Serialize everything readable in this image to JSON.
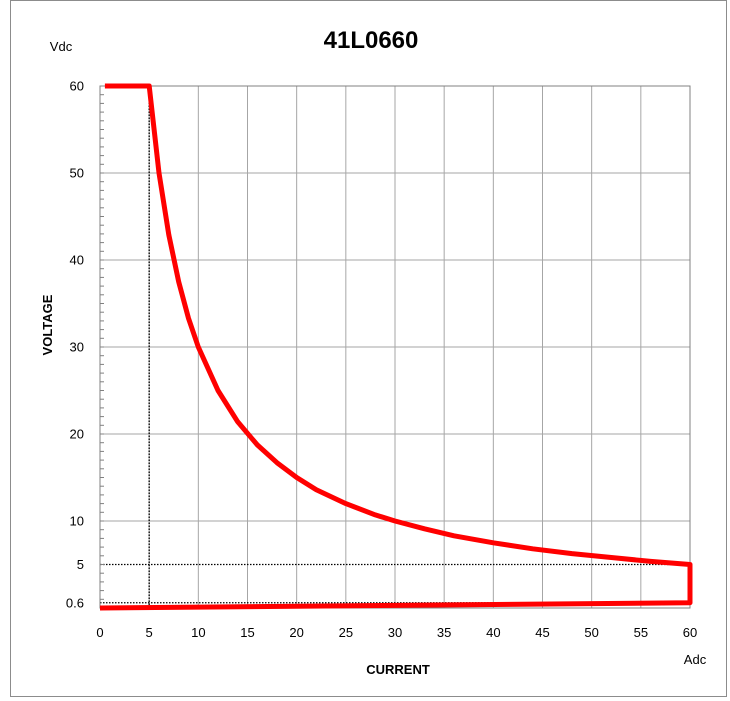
{
  "chart_data": {
    "type": "line",
    "title": "41L0660",
    "xlabel": "CURRENT",
    "ylabel": "VOLTAGE",
    "x_unit": "Adc",
    "y_unit": "Vdc",
    "xlim": [
      0,
      60
    ],
    "ylim": [
      0,
      60
    ],
    "x_ticks": [
      "0",
      "5",
      "10",
      "15",
      "20",
      "25",
      "30",
      "35",
      "40",
      "45",
      "50",
      "55",
      "60"
    ],
    "y_ticks": [
      {
        "value": 0.6,
        "label": "0.6"
      },
      {
        "value": 5,
        "label": "5"
      },
      {
        "value": 10,
        "label": "10"
      },
      {
        "value": 20,
        "label": "20"
      },
      {
        "value": 30,
        "label": "30"
      },
      {
        "value": 40,
        "label": "40"
      },
      {
        "value": 50,
        "label": "50"
      },
      {
        "value": 60,
        "label": "60"
      }
    ],
    "grid": true,
    "line_color": "#ff0000",
    "series": [
      {
        "values": [
          [
            0.5,
            60
          ],
          [
            5,
            60
          ],
          [
            6,
            50
          ],
          [
            7,
            42.9
          ],
          [
            8,
            37.5
          ],
          [
            9,
            33.3
          ],
          [
            10,
            30
          ],
          [
            12,
            25
          ],
          [
            14,
            21.4
          ],
          [
            16,
            18.75
          ],
          [
            18,
            16.7
          ],
          [
            20,
            15
          ],
          [
            22,
            13.6
          ],
          [
            25,
            12
          ],
          [
            28,
            10.7
          ],
          [
            30,
            10
          ],
          [
            33,
            9.1
          ],
          [
            36,
            8.3
          ],
          [
            40,
            7.5
          ],
          [
            44,
            6.8
          ],
          [
            48,
            6.25
          ],
          [
            52,
            5.8
          ],
          [
            56,
            5.36
          ],
          [
            60,
            5
          ],
          [
            60,
            0.6
          ],
          [
            0,
            0
          ]
        ]
      }
    ],
    "reference_lines": [
      {
        "orientation": "vertical",
        "x": 5,
        "from": 0,
        "to": 60
      },
      {
        "orientation": "horizontal",
        "y": 5,
        "from": 0,
        "to": 60
      },
      {
        "orientation": "horizontal",
        "y": 0.6,
        "from": 0,
        "to": 60
      }
    ]
  }
}
